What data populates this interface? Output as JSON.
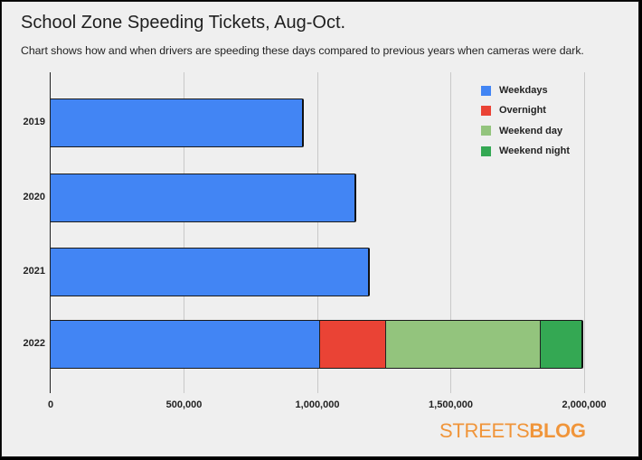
{
  "title": "School Zone Speeding Tickets, Aug-Oct.",
  "subtitle": "Chart shows how and when drivers are speeding these days compared to previous years when cameras were dark.",
  "logo": {
    "light": "STREETS",
    "bold": "BLOG"
  },
  "legend": [
    {
      "label": "Weekdays",
      "color": "#4285f4"
    },
    {
      "label": "Overnight",
      "color": "#ea4335"
    },
    {
      "label": "Weekend day",
      "color": "#93c47d"
    },
    {
      "label": "Weekend night",
      "color": "#34a853"
    }
  ],
  "x_ticks": [
    "0",
    "500,000",
    "1,000,000",
    "1,500,000",
    "2,000,000"
  ],
  "chart_data": {
    "type": "bar",
    "orientation": "horizontal",
    "stacked": true,
    "title": "School Zone Speeding Tickets, Aug-Oct.",
    "subtitle": "Chart shows how and when drivers are speeding these days compared to previous years when cameras were dark.",
    "xlabel": "",
    "ylabel": "",
    "categories": [
      "2019",
      "2020",
      "2021",
      "2022"
    ],
    "series": [
      {
        "name": "Weekdays",
        "color": "#4285f4",
        "values": [
          949000,
          1146000,
          1197000,
          1010000
        ]
      },
      {
        "name": "Overnight",
        "color": "#ea4335",
        "values": [
          0,
          0,
          0,
          247000
        ]
      },
      {
        "name": "Weekend day",
        "color": "#93c47d",
        "values": [
          0,
          0,
          0,
          580000
        ]
      },
      {
        "name": "Weekend night",
        "color": "#34a853",
        "values": [
          0,
          0,
          0,
          159000
        ]
      }
    ],
    "xlim": [
      0,
      2000000
    ],
    "x_ticks": [
      0,
      500000,
      1000000,
      1500000,
      2000000
    ],
    "grid": true,
    "legend_position": "top-right inside"
  }
}
